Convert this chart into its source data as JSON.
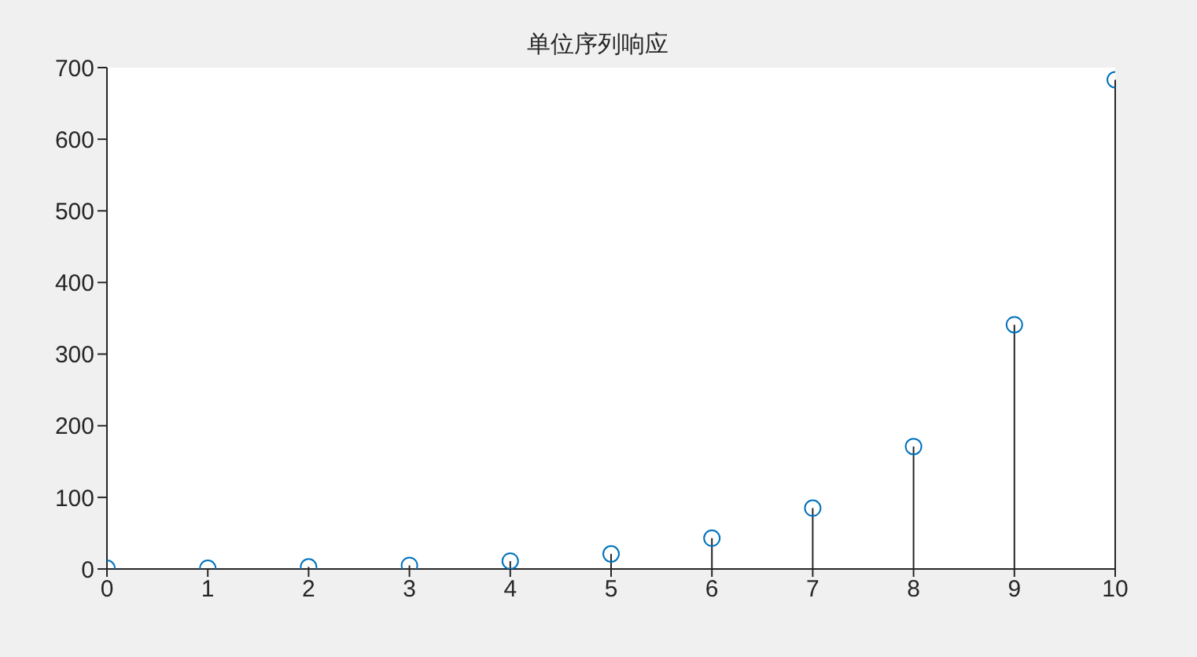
{
  "chart_data": {
    "type": "lollipop",
    "title": "单位序列响应",
    "x": [
      0,
      1,
      2,
      3,
      4,
      5,
      6,
      7,
      8,
      9,
      10
    ],
    "values": [
      1,
      1,
      3,
      5,
      11,
      21,
      43,
      85,
      171,
      341,
      683
    ],
    "color": "#0072bd",
    "marker": "circle",
    "grid": false,
    "xlim": [
      0,
      10
    ],
    "xticks": [
      0,
      1,
      2,
      3,
      4,
      5,
      6,
      7,
      8,
      9,
      10
    ],
    "ylim": [
      0,
      700
    ],
    "yticks": [
      0,
      100,
      200,
      300,
      400,
      500,
      600,
      700
    ]
  }
}
